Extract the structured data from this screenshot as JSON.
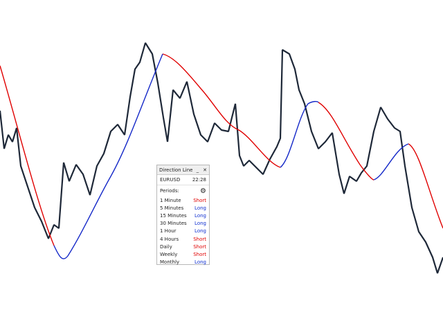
{
  "panel": {
    "title": "Direction Line",
    "symbol": "EURUSD",
    "time": "22:28",
    "periods_label": "Periods:",
    "rows": [
      {
        "period": "1 Minute",
        "direction": "Short",
        "color": "#e00000"
      },
      {
        "period": "5 Minutes",
        "direction": "Long",
        "color": "#1030d0"
      },
      {
        "period": "15 Minutes",
        "direction": "Long",
        "color": "#1030d0"
      },
      {
        "period": "30 Minutes",
        "direction": "Long",
        "color": "#1030d0"
      },
      {
        "period": "1 Hour",
        "direction": "Long",
        "color": "#1030d0"
      },
      {
        "period": "4 Hours",
        "direction": "Short",
        "color": "#e00000"
      },
      {
        "period": "Daily",
        "direction": "Short",
        "color": "#e00000"
      },
      {
        "period": "Weekly",
        "direction": "Short",
        "color": "#e00000"
      },
      {
        "period": "Monthly",
        "direction": "Long",
        "color": "#1030d0"
      }
    ]
  }
}
